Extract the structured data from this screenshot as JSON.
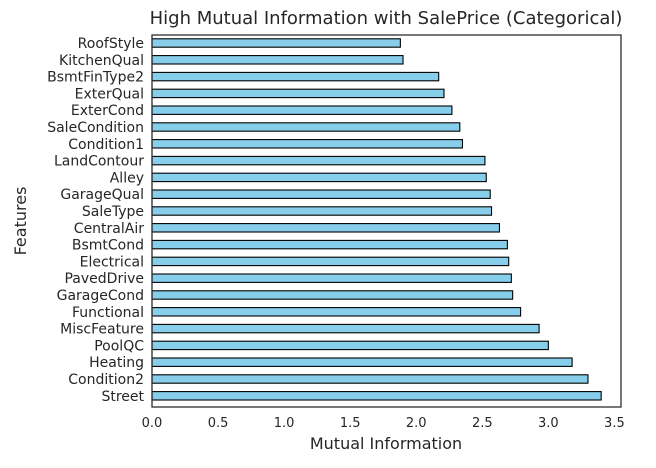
{
  "chart_data": {
    "type": "bar",
    "orientation": "horizontal",
    "title": "High Mutual Information with SalePrice (Categorical)",
    "xlabel": "Mutual Information",
    "ylabel": "Features",
    "xlim": [
      0,
      3.55
    ],
    "xticks": [
      "0.0",
      "0.5",
      "1.0",
      "1.5",
      "2.0",
      "2.5",
      "3.0",
      "3.5"
    ],
    "grid": false,
    "bar_color": "#87CEEB",
    "edge_color": "#000000",
    "categories": [
      "Street",
      "Condition2",
      "Heating",
      "PoolQC",
      "MiscFeature",
      "Functional",
      "GarageCond",
      "PavedDrive",
      "Electrical",
      "BsmtCond",
      "CentralAir",
      "SaleType",
      "GarageQual",
      "Alley",
      "LandContour",
      "Condition1",
      "SaleCondition",
      "ExterCond",
      "ExterQual",
      "BsmtFinType2",
      "KitchenQual",
      "RoofStyle"
    ],
    "values": [
      3.4,
      3.3,
      3.18,
      3.0,
      2.93,
      2.79,
      2.73,
      2.72,
      2.7,
      2.69,
      2.63,
      2.57,
      2.56,
      2.53,
      2.52,
      2.35,
      2.33,
      2.27,
      2.21,
      2.17,
      1.9,
      1.88
    ]
  }
}
